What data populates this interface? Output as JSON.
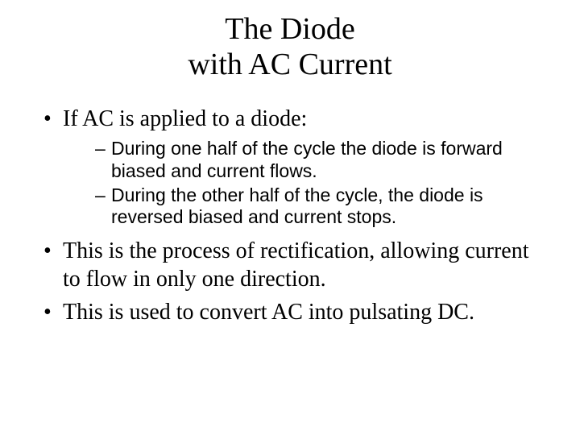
{
  "title_line1": "The Diode",
  "title_line2": "with AC Current",
  "bullets": [
    {
      "text": "If AC is applied to a diode:",
      "subs": [
        "During one half of the cycle the diode is forward biased and current flows.",
        "During the other half of the cycle, the diode is reversed biased and current stops."
      ]
    },
    {
      "text": "This is the process of rectification, allowing current to flow in only one direction.",
      "subs": []
    },
    {
      "text": "This is used to convert AC into pulsating DC.",
      "subs": []
    }
  ],
  "colors": {
    "background": "#ffffff",
    "text": "#000000"
  },
  "fonts": {
    "title": {
      "family": "Times New Roman",
      "size_pt": 38,
      "weight": "normal"
    },
    "bullet": {
      "family": "Times New Roman",
      "size_pt": 28,
      "weight": "normal"
    },
    "sub": {
      "family": "Arial",
      "size_pt": 23,
      "weight": "normal"
    }
  }
}
